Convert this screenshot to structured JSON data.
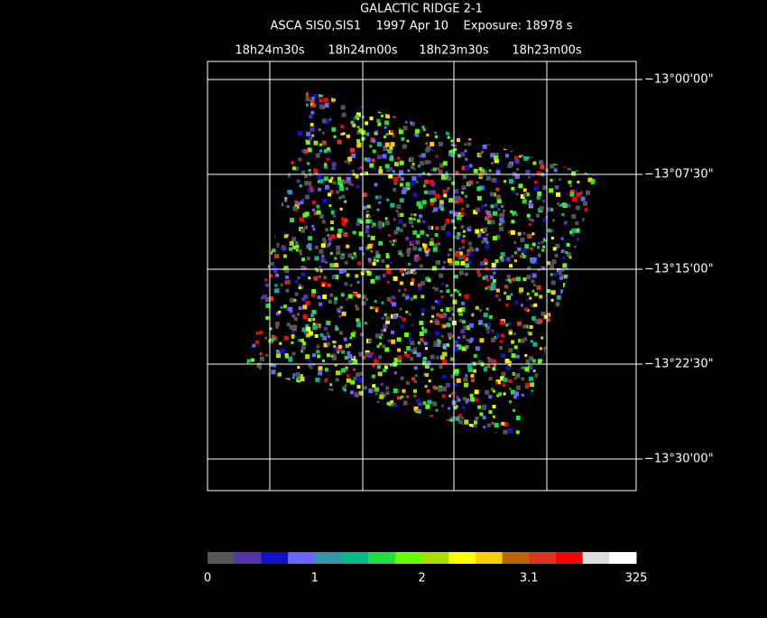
{
  "header": {
    "title": "GALACTIC RIDGE 2-1",
    "subtitle": "ASCA SIS0,SIS1    1997 Apr 10    Exposure: 18978 s"
  },
  "ra_labels": [
    "18h24m30s",
    "18h24m00s",
    "18h23m30s",
    "18h23m00s"
  ],
  "dec_labels": [
    "−13°00'00\"",
    "−13°07'30\"",
    "−13°15'00\"",
    "−13°22'30\"",
    "−13°30'00\""
  ],
  "colorbar": {
    "colors": [
      "#555555",
      "#5533aa",
      "#1111cc",
      "#6666ff",
      "#3399aa",
      "#00bb88",
      "#22dd44",
      "#66ff00",
      "#aadd00",
      "#ffff00",
      "#ffcc00",
      "#bb6600",
      "#dd3322",
      "#ff0000",
      "#dddddd",
      "#ffffff"
    ],
    "labels": [
      "0",
      "1",
      "2",
      "3.1",
      "325"
    ]
  }
}
